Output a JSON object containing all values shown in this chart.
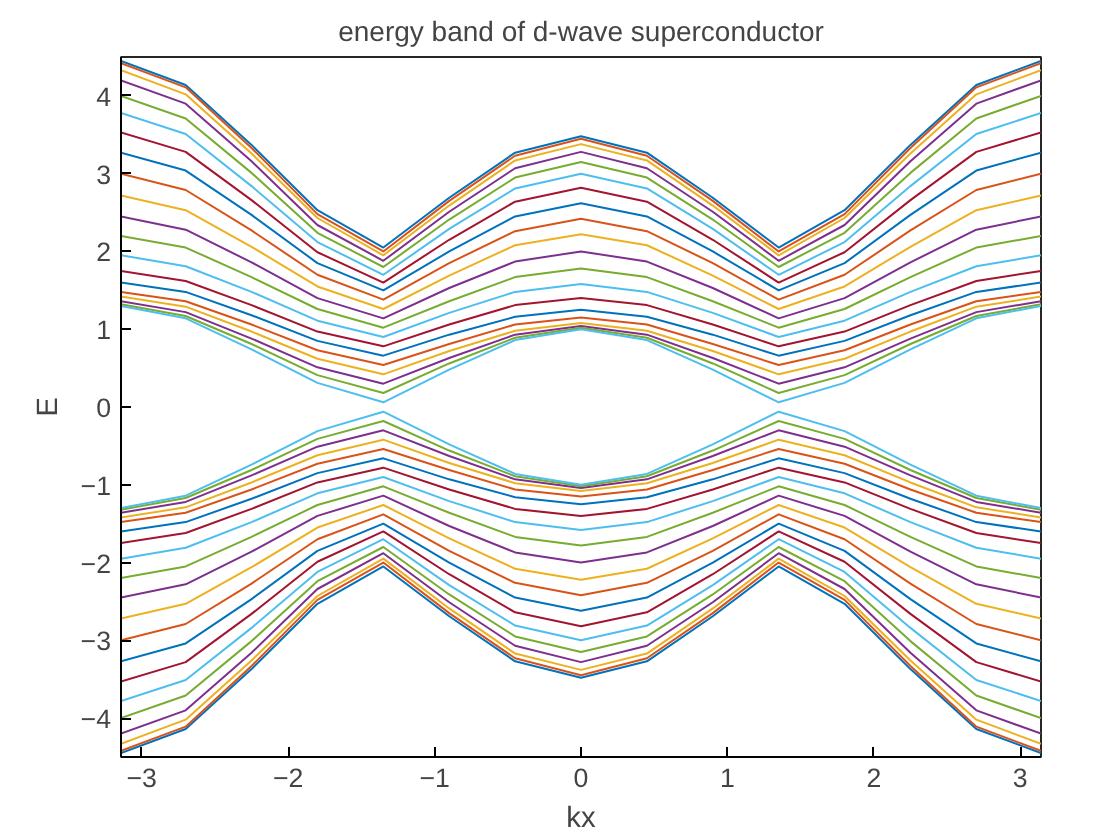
{
  "chart_data": {
    "type": "line",
    "title": "energy band of d-wave superconductor",
    "xlabel": "kx",
    "ylabel": "E",
    "x": [
      -3.1416,
      -2.7,
      -2.25,
      -1.8,
      -1.35,
      -0.9,
      -0.45,
      0,
      0.45,
      0.9,
      1.35,
      1.8,
      2.25,
      2.7,
      3.1416
    ],
    "xlim": [
      -3.1416,
      3.1416
    ],
    "ylim": [
      -4.5,
      4.5
    ],
    "xticks": [
      -3,
      -2,
      -1,
      0,
      1,
      2,
      3
    ],
    "yticks": [
      -4,
      -3,
      -2,
      -1,
      0,
      1,
      2,
      3,
      4
    ],
    "grid": false,
    "marker": "none",
    "line_style": "solid",
    "series": [
      {
        "color": "#0072bd",
        "values": [
          4.45,
          4.14,
          3.37,
          2.53,
          2.05,
          2.69,
          3.27,
          3.48,
          3.27,
          2.69,
          2.05,
          2.53,
          3.37,
          4.14,
          4.45
        ]
      },
      {
        "color": "#d95319",
        "values": [
          4.42,
          4.11,
          3.33,
          2.48,
          2.0,
          2.65,
          3.23,
          3.45,
          3.23,
          2.65,
          2.0,
          2.48,
          3.33,
          4.11,
          4.42
        ]
      },
      {
        "color": "#edb120",
        "values": [
          4.33,
          4.02,
          3.26,
          2.43,
          1.95,
          2.59,
          3.17,
          3.38,
          3.17,
          2.59,
          1.95,
          2.43,
          3.26,
          4.02,
          4.33
        ]
      },
      {
        "color": "#7e2f8e",
        "values": [
          4.2,
          3.9,
          3.16,
          2.34,
          1.88,
          2.51,
          3.07,
          3.28,
          3.07,
          2.51,
          1.88,
          2.34,
          3.16,
          3.9,
          4.2
        ]
      },
      {
        "color": "#77ac30",
        "values": [
          4.0,
          3.71,
          3.01,
          2.24,
          1.8,
          2.41,
          2.95,
          3.15,
          2.95,
          2.41,
          1.8,
          2.24,
          3.01,
          3.71,
          4.0
        ]
      },
      {
        "color": "#4dbeee",
        "values": [
          3.78,
          3.51,
          2.84,
          2.12,
          1.7,
          2.29,
          2.81,
          3.0,
          2.81,
          2.29,
          1.7,
          2.12,
          2.84,
          3.51,
          3.78
        ]
      },
      {
        "color": "#a2142f",
        "values": [
          3.53,
          3.28,
          2.66,
          1.99,
          1.6,
          2.15,
          2.64,
          2.82,
          2.64,
          2.15,
          1.6,
          1.99,
          2.66,
          3.28,
          3.53
        ]
      },
      {
        "color": "#0072bd",
        "values": [
          3.27,
          3.04,
          2.47,
          1.85,
          1.5,
          2.0,
          2.45,
          2.62,
          2.45,
          2.0,
          1.5,
          1.85,
          2.47,
          3.04,
          3.27
        ]
      },
      {
        "color": "#d95319",
        "values": [
          3.0,
          2.79,
          2.27,
          1.7,
          1.38,
          1.85,
          2.26,
          2.42,
          2.26,
          1.85,
          1.38,
          1.7,
          2.27,
          2.79,
          3.0
        ]
      },
      {
        "color": "#edb120",
        "values": [
          2.72,
          2.53,
          2.06,
          1.55,
          1.26,
          1.69,
          2.08,
          2.22,
          2.08,
          1.69,
          1.26,
          1.55,
          2.06,
          2.53,
          2.72
        ]
      },
      {
        "color": "#7e2f8e",
        "values": [
          2.45,
          2.28,
          1.86,
          1.4,
          1.14,
          1.53,
          1.87,
          2.0,
          1.87,
          1.53,
          1.14,
          1.4,
          1.86,
          2.28,
          2.45
        ]
      },
      {
        "color": "#77ac30",
        "values": [
          2.2,
          2.05,
          1.67,
          1.26,
          1.02,
          1.36,
          1.67,
          1.78,
          1.67,
          1.36,
          1.02,
          1.26,
          1.67,
          2.05,
          2.2
        ]
      },
      {
        "color": "#4dbeee",
        "values": [
          1.95,
          1.81,
          1.48,
          1.11,
          0.9,
          1.21,
          1.48,
          1.58,
          1.48,
          1.21,
          0.9,
          1.11,
          1.48,
          1.81,
          1.95
        ]
      },
      {
        "color": "#a2142f",
        "values": [
          1.75,
          1.62,
          1.31,
          0.97,
          0.78,
          1.06,
          1.31,
          1.4,
          1.31,
          1.06,
          0.78,
          0.97,
          1.31,
          1.62,
          1.75
        ]
      },
      {
        "color": "#0072bd",
        "values": [
          1.6,
          1.48,
          1.18,
          0.85,
          0.66,
          0.93,
          1.16,
          1.25,
          1.16,
          0.93,
          0.66,
          0.85,
          1.18,
          1.48,
          1.6
        ]
      },
      {
        "color": "#d95319",
        "values": [
          1.48,
          1.36,
          1.06,
          0.73,
          0.54,
          0.81,
          1.06,
          1.15,
          1.06,
          0.81,
          0.54,
          0.73,
          1.06,
          1.36,
          1.48
        ]
      },
      {
        "color": "#edb120",
        "values": [
          1.42,
          1.29,
          0.97,
          0.62,
          0.42,
          0.72,
          0.98,
          1.08,
          0.98,
          0.72,
          0.42,
          0.62,
          0.97,
          1.29,
          1.42
        ]
      },
      {
        "color": "#7e2f8e",
        "values": [
          1.36,
          1.22,
          0.88,
          0.51,
          0.3,
          0.63,
          0.93,
          1.04,
          0.93,
          0.63,
          0.3,
          0.51,
          0.88,
          1.22,
          1.36
        ]
      },
      {
        "color": "#77ac30",
        "values": [
          1.32,
          1.17,
          0.81,
          0.41,
          0.18,
          0.56,
          0.89,
          1.02,
          0.89,
          0.56,
          0.18,
          0.41,
          0.81,
          1.17,
          1.32
        ]
      },
      {
        "color": "#4dbeee",
        "values": [
          1.3,
          1.14,
          0.74,
          0.31,
          0.06,
          0.48,
          0.86,
          1.0,
          0.86,
          0.48,
          0.06,
          0.31,
          0.74,
          1.14,
          1.3
        ]
      },
      {
        "color": "#0072bd",
        "values": [
          -4.45,
          -4.14,
          -3.37,
          -2.53,
          -2.05,
          -2.69,
          -3.27,
          -3.48,
          -3.27,
          -2.69,
          -2.05,
          -2.53,
          -3.37,
          -4.14,
          -4.45
        ]
      },
      {
        "color": "#d95319",
        "values": [
          -4.42,
          -4.11,
          -3.33,
          -2.48,
          -2.0,
          -2.65,
          -3.23,
          -3.45,
          -3.23,
          -2.65,
          -2.0,
          -2.48,
          -3.33,
          -4.11,
          -4.42
        ]
      },
      {
        "color": "#edb120",
        "values": [
          -4.33,
          -4.02,
          -3.26,
          -2.43,
          -1.95,
          -2.59,
          -3.17,
          -3.38,
          -3.17,
          -2.59,
          -1.95,
          -2.43,
          -3.26,
          -4.02,
          -4.33
        ]
      },
      {
        "color": "#7e2f8e",
        "values": [
          -4.2,
          -3.9,
          -3.16,
          -2.34,
          -1.88,
          -2.51,
          -3.07,
          -3.28,
          -3.07,
          -2.51,
          -1.88,
          -2.34,
          -3.16,
          -3.9,
          -4.2
        ]
      },
      {
        "color": "#77ac30",
        "values": [
          -4.0,
          -3.71,
          -3.01,
          -2.24,
          -1.8,
          -2.41,
          -2.95,
          -3.15,
          -2.95,
          -2.41,
          -1.8,
          -2.24,
          -3.01,
          -3.71,
          -4.0
        ]
      },
      {
        "color": "#4dbeee",
        "values": [
          -3.78,
          -3.51,
          -2.84,
          -2.12,
          -1.7,
          -2.29,
          -2.81,
          -3.0,
          -2.81,
          -2.29,
          -1.7,
          -2.12,
          -2.84,
          -3.51,
          -3.78
        ]
      },
      {
        "color": "#a2142f",
        "values": [
          -3.53,
          -3.28,
          -2.66,
          -1.99,
          -1.6,
          -2.15,
          -2.64,
          -2.82,
          -2.64,
          -2.15,
          -1.6,
          -1.99,
          -2.66,
          -3.28,
          -3.53
        ]
      },
      {
        "color": "#0072bd",
        "values": [
          -3.27,
          -3.04,
          -2.47,
          -1.85,
          -1.5,
          -2.0,
          -2.45,
          -2.62,
          -2.45,
          -2.0,
          -1.5,
          -1.85,
          -2.47,
          -3.04,
          -3.27
        ]
      },
      {
        "color": "#d95319",
        "values": [
          -3.0,
          -2.79,
          -2.27,
          -1.7,
          -1.38,
          -1.85,
          -2.26,
          -2.42,
          -2.26,
          -1.85,
          -1.38,
          -1.7,
          -2.27,
          -2.79,
          -3.0
        ]
      },
      {
        "color": "#edb120",
        "values": [
          -2.72,
          -2.53,
          -2.06,
          -1.55,
          -1.26,
          -1.69,
          -2.08,
          -2.22,
          -2.08,
          -1.69,
          -1.26,
          -1.55,
          -2.06,
          -2.53,
          -2.72
        ]
      },
      {
        "color": "#7e2f8e",
        "values": [
          -2.45,
          -2.28,
          -1.86,
          -1.4,
          -1.14,
          -1.53,
          -1.87,
          -2.0,
          -1.87,
          -1.53,
          -1.14,
          -1.4,
          -1.86,
          -2.28,
          -2.45
        ]
      },
      {
        "color": "#77ac30",
        "values": [
          -2.2,
          -2.05,
          -1.67,
          -1.26,
          -1.02,
          -1.36,
          -1.67,
          -1.78,
          -1.67,
          -1.36,
          -1.02,
          -1.26,
          -1.67,
          -2.05,
          -2.2
        ]
      },
      {
        "color": "#4dbeee",
        "values": [
          -1.95,
          -1.81,
          -1.48,
          -1.11,
          -0.9,
          -1.21,
          -1.48,
          -1.58,
          -1.48,
          -1.21,
          -0.9,
          -1.11,
          -1.48,
          -1.81,
          -1.95
        ]
      },
      {
        "color": "#a2142f",
        "values": [
          -1.75,
          -1.62,
          -1.31,
          -0.97,
          -0.78,
          -1.06,
          -1.31,
          -1.4,
          -1.31,
          -1.06,
          -0.78,
          -0.97,
          -1.31,
          -1.62,
          -1.75
        ]
      },
      {
        "color": "#0072bd",
        "values": [
          -1.6,
          -1.48,
          -1.18,
          -0.85,
          -0.66,
          -0.93,
          -1.16,
          -1.25,
          -1.16,
          -0.93,
          -0.66,
          -0.85,
          -1.18,
          -1.48,
          -1.6
        ]
      },
      {
        "color": "#d95319",
        "values": [
          -1.48,
          -1.36,
          -1.06,
          -0.73,
          -0.54,
          -0.81,
          -1.06,
          -1.15,
          -1.06,
          -0.81,
          -0.54,
          -0.73,
          -1.06,
          -1.36,
          -1.48
        ]
      },
      {
        "color": "#edb120",
        "values": [
          -1.42,
          -1.29,
          -0.97,
          -0.62,
          -0.42,
          -0.72,
          -0.98,
          -1.08,
          -0.98,
          -0.72,
          -0.42,
          -0.62,
          -0.97,
          -1.29,
          -1.42
        ]
      },
      {
        "color": "#7e2f8e",
        "values": [
          -1.36,
          -1.22,
          -0.88,
          -0.51,
          -0.3,
          -0.63,
          -0.93,
          -1.04,
          -0.93,
          -0.63,
          -0.3,
          -0.51,
          -0.88,
          -1.22,
          -1.36
        ]
      },
      {
        "color": "#77ac30",
        "values": [
          -1.32,
          -1.17,
          -0.81,
          -0.41,
          -0.18,
          -0.56,
          -0.89,
          -1.02,
          -0.89,
          -0.56,
          -0.18,
          -0.41,
          -0.81,
          -1.17,
          -1.32
        ]
      },
      {
        "color": "#4dbeee",
        "values": [
          -1.3,
          -1.14,
          -0.74,
          -0.31,
          -0.06,
          -0.48,
          -0.86,
          -1.0,
          -0.86,
          -0.48,
          -0.06,
          -0.31,
          -0.74,
          -1.14,
          -1.3
        ]
      }
    ]
  }
}
